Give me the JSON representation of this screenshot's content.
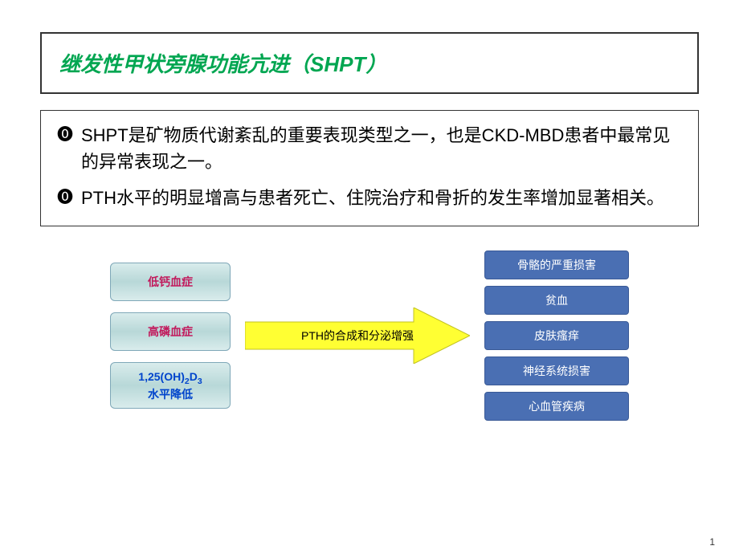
{
  "title": "继发性甲状旁腺功能亢进（SHPT）",
  "title_color": "#00a651",
  "bullets": [
    "SHPT是矿物质代谢紊乱的重要表现类型之一，也是CKD-MBD患者中最常见的异常表现之一。",
    "PTH水平的明显增高与患者死亡、住院治疗和骨折的发生率增加显著相关。"
  ],
  "diagram": {
    "causes": [
      {
        "label": "低钙血症",
        "color": "#c2185b",
        "html": "低钙血症"
      },
      {
        "label": "高磷血症",
        "color": "#c2185b",
        "html": "高磷血症"
      },
      {
        "label": "1,25(OH)2D3 水平降低",
        "color": "#0044cc",
        "html": "1,25(OH)<sub>2</sub>D<sub>3</sub><br>水平降低"
      }
    ],
    "cause_box_bg_top": "#d9ecec",
    "cause_box_bg_mid": "#b8d8d8",
    "cause_box_border": "#7fa8b8",
    "arrow": {
      "label": "PTH的合成和分泌增强",
      "fill": "#ffff33",
      "stroke": "#c0c020"
    },
    "effects": [
      "骨骼的严重损害",
      "贫血",
      "皮肤瘙痒",
      "神经系统损害",
      "心血管疾病"
    ],
    "effect_box_bg": "#4a6fb3",
    "effect_box_border": "#3a5a96",
    "effect_text_color": "#ffffff"
  },
  "page_number": "1",
  "background_color": "#ffffff"
}
